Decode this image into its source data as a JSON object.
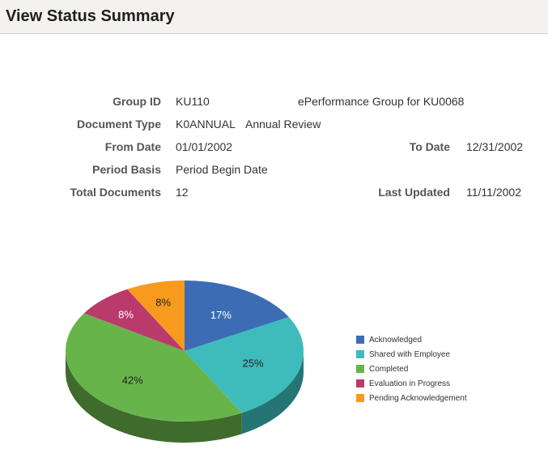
{
  "page": {
    "title": "View Status Summary"
  },
  "summary": {
    "group_id": {
      "label": "Group ID",
      "value": "KU110",
      "description": "ePerformance Group for KU0068"
    },
    "document_type": {
      "label": "Document Type",
      "code": "K0ANNUAL",
      "description": "Annual Review"
    },
    "from_date": {
      "label": "From Date",
      "value": "01/01/2002"
    },
    "to_date": {
      "label": "To Date",
      "value": "12/31/2002"
    },
    "period_basis": {
      "label": "Period Basis",
      "value": "Period Begin Date"
    },
    "total_documents": {
      "label": "Total Documents",
      "value": "12"
    },
    "last_updated": {
      "label": "Last Updated",
      "value": "11/11/2002"
    }
  },
  "chart_data": {
    "type": "pie",
    "categories": [
      "Acknowledged",
      "Shared with Employee",
      "Completed",
      "Evaluation in Progress",
      "Pending Acknowledgement"
    ],
    "values": [
      17,
      25,
      42,
      8,
      8
    ],
    "labels": [
      "17%",
      "25%",
      "42%",
      "8%",
      "8%"
    ],
    "colors": [
      "#3c6db4",
      "#3ebcbc",
      "#67b54a",
      "#bb3a6c",
      "#f79a1d"
    ],
    "dark_colors": [
      "#2a4d80",
      "#267575",
      "#3f6b2c",
      "#7a2647",
      "#a8650f"
    ],
    "label_colors": [
      "#ffffff",
      "#222222",
      "#222222",
      "#ffffff",
      "#222222"
    ],
    "legend_position": "right"
  }
}
